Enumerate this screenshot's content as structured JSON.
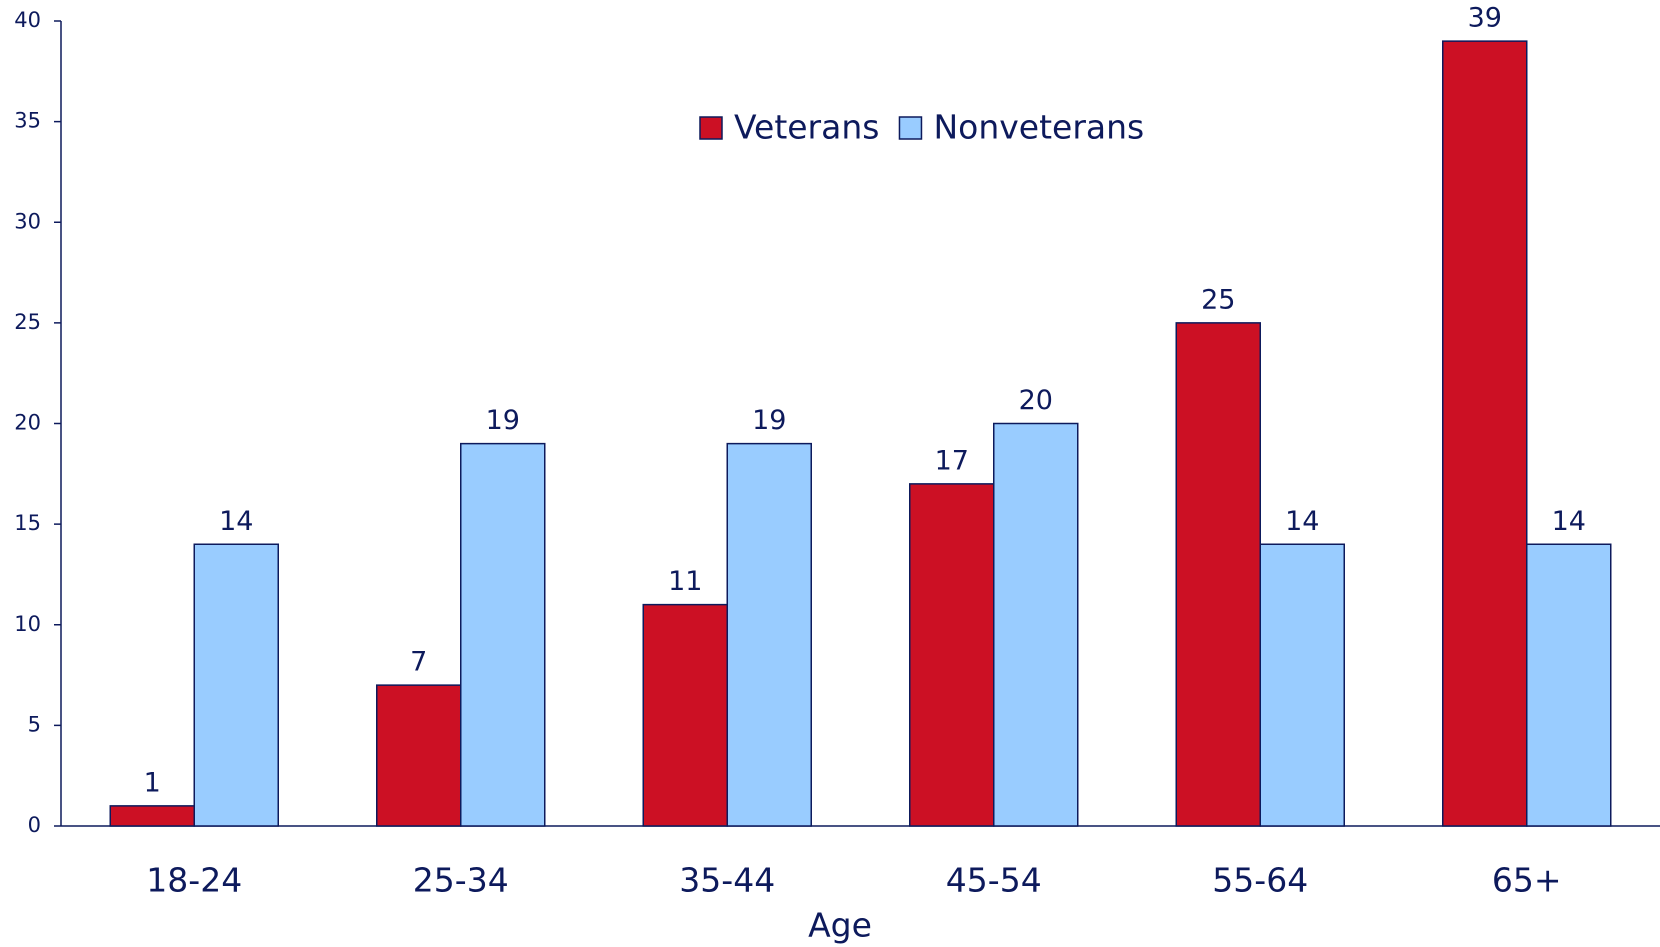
{
  "chart_data": {
    "type": "bar",
    "x_label": "Age",
    "categories": [
      "18-24",
      "25-34",
      "35-44",
      "45-54",
      "55-64",
      "65+"
    ],
    "series": [
      {
        "name": "Veterans",
        "color": "#cc1024",
        "values": [
          1,
          7,
          11,
          17,
          25,
          39
        ]
      },
      {
        "name": "Nonveterans",
        "color": "#99ccff",
        "values": [
          14,
          19,
          19,
          20,
          14,
          14
        ]
      }
    ],
    "ylim": [
      0,
      40
    ],
    "yticks": [
      0,
      5,
      10,
      15,
      20,
      25,
      30,
      35,
      40
    ],
    "legend": "top-center"
  }
}
